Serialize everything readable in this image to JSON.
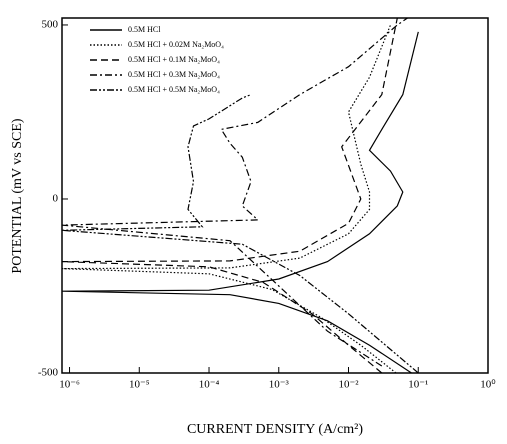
{
  "chart_data": {
    "type": "line",
    "xlabel": "CURRENT DENSITY (A/cm²)",
    "ylabel": "POTENTIAL (mV vs SCE)",
    "xscale": "log",
    "xlim": [
      7.8e-07,
      1
    ],
    "ylim": [
      -500,
      520
    ],
    "xticks": [
      {
        "value": 1e-06,
        "label": "10⁻⁶"
      },
      {
        "value": 1e-05,
        "label": "10⁻⁵"
      },
      {
        "value": 0.0001,
        "label": "10⁻⁴"
      },
      {
        "value": 0.001,
        "label": "10⁻³"
      },
      {
        "value": 0.01,
        "label": "10⁻²"
      },
      {
        "value": 0.1,
        "label": "10⁻¹"
      },
      {
        "value": 1,
        "label": "10⁰"
      }
    ],
    "yticks": [
      -500,
      0,
      500
    ],
    "grid": false,
    "legend": "upper left",
    "series": [
      {
        "name": "0.5M HCl",
        "color": "#000000",
        "dash": "solid",
        "x": [
          0.08,
          0.02,
          0.005,
          0.001,
          0.0002,
          7.8e-07,
          0.0001,
          0.001,
          0.005,
          0.02,
          0.05,
          0.06,
          0.04,
          0.02,
          0.03,
          0.06,
          0.1
        ],
        "values": [
          -500,
          -420,
          -350,
          -300,
          -275,
          -265,
          -262,
          -230,
          -180,
          -100,
          -20,
          20,
          80,
          140,
          200,
          300,
          480
        ]
      },
      {
        "name": "0.5M HCl + 0.02M Na₂MoO₄",
        "color": "#000000",
        "dash": "dotted",
        "x": [
          0.048,
          0.015,
          0.004,
          0.0008,
          0.0001,
          7.8e-07,
          0.0002,
          0.002,
          0.01,
          0.02,
          0.02,
          0.015,
          0.01,
          0.02,
          0.04
        ],
        "values": [
          -500,
          -420,
          -340,
          -260,
          -215,
          -200,
          -198,
          -170,
          -100,
          -30,
          20,
          100,
          250,
          350,
          500
        ]
      },
      {
        "name": "0.5M HCl + 0.1M Na₂MoO₄",
        "color": "#000000",
        "dash": "dashed",
        "x": [
          0.03,
          0.01,
          0.003,
          0.0006,
          0.0001,
          7.8e-07,
          0.0002,
          0.002,
          0.01,
          0.015,
          0.008,
          0.03,
          0.05
        ],
        "values": [
          -500,
          -420,
          -330,
          -240,
          -195,
          -180,
          -178,
          -150,
          -70,
          0,
          150,
          300,
          520
        ]
      },
      {
        "name": "0.5M HCl + 0.3M Na₂MoO₄",
        "color": "#000000",
        "dash": "dashdot",
        "x": [
          0.03,
          0.005,
          0.001,
          0.0002,
          7.8e-07,
          0.0005,
          0.0003,
          0.0004,
          0.0003,
          0.0002,
          0.00015,
          0.0005,
          0.002,
          0.01,
          0.05,
          0.07
        ],
        "values": [
          -480,
          -380,
          -250,
          -120,
          -75,
          -60,
          -20,
          50,
          120,
          160,
          200,
          220,
          300,
          380,
          500,
          520
        ]
      },
      {
        "name": "0.5M HCl + 0.5M Na₂MoO₄",
        "color": "#000000",
        "dash": "dashdotdot",
        "x": [
          0.1,
          0.01,
          0.002,
          0.0003,
          7.8e-07,
          8e-05,
          5e-05,
          6e-05,
          5e-05,
          6e-05,
          0.0001,
          0.0003,
          0.0004
        ],
        "values": [
          -500,
          -330,
          -220,
          -130,
          -90,
          -80,
          -30,
          50,
          150,
          210,
          230,
          290,
          300
        ]
      }
    ]
  }
}
